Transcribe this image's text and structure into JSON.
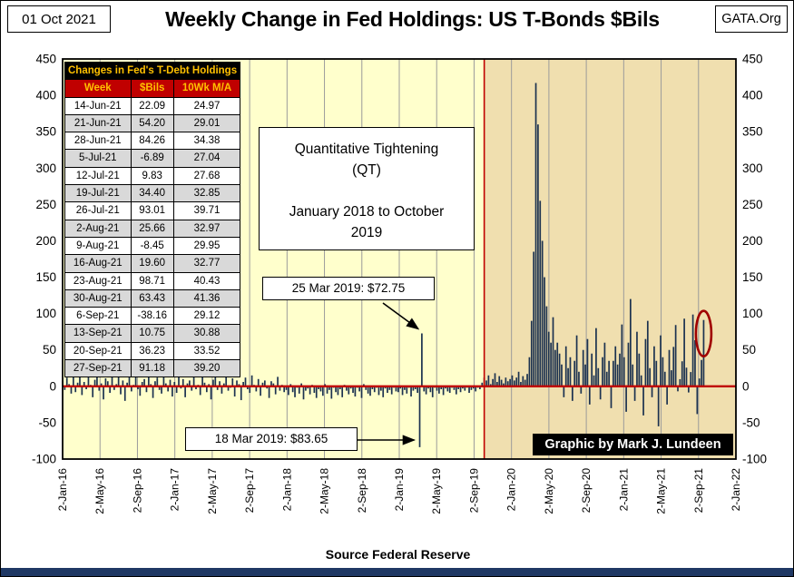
{
  "header": {
    "date": "01 Oct 2021",
    "site": "GATA.Org",
    "title": "Weekly Change in Fed Holdings: US T-Bonds $Bils"
  },
  "table": {
    "title": "Changes in Fed's T-Debt Holdings",
    "columns": [
      "Week",
      "$Bils",
      "10Wk M/A"
    ],
    "rows": [
      [
        "14-Jun-21",
        "22.09",
        "24.97"
      ],
      [
        "21-Jun-21",
        "54.20",
        "29.01"
      ],
      [
        "28-Jun-21",
        "84.26",
        "34.38"
      ],
      [
        "5-Jul-21",
        "-6.89",
        "27.04"
      ],
      [
        "12-Jul-21",
        "9.83",
        "27.68"
      ],
      [
        "19-Jul-21",
        "34.40",
        "32.85"
      ],
      [
        "26-Jul-21",
        "93.01",
        "39.71"
      ],
      [
        "2-Aug-21",
        "25.66",
        "32.97"
      ],
      [
        "9-Aug-21",
        "-8.45",
        "29.95"
      ],
      [
        "16-Aug-21",
        "19.60",
        "32.77"
      ],
      [
        "23-Aug-21",
        "98.71",
        "40.43"
      ],
      [
        "30-Aug-21",
        "63.43",
        "41.36"
      ],
      [
        "6-Sep-21",
        "-38.16",
        "29.12"
      ],
      [
        "13-Sep-21",
        "10.75",
        "30.88"
      ],
      [
        "20-Sep-21",
        "36.23",
        "33.52"
      ],
      [
        "27-Sep-21",
        "91.18",
        "39.20"
      ]
    ]
  },
  "annotations": {
    "qt_line1": "Quantitative Tightening",
    "qt_line2": "(QT)",
    "qt_line3": "January 2018 to October 2019",
    "callout_high": "25 Mar 2019: $72.75",
    "callout_low": "18 Mar 2019: $83.65",
    "credit": "Graphic by Mark J. Lundeen"
  },
  "footer": {
    "source": "Source Federal Reserve"
  },
  "chart_data": {
    "type": "bar",
    "title": "Weekly Change in Fed Holdings: US T-Bonds $Bils",
    "series_name": "Weekly change in Fed T-bond holdings ($Bils)",
    "xlabel": "Source Federal Reserve",
    "ylabel": "",
    "ylim": [
      -100,
      450
    ],
    "y_ticks": [
      450,
      400,
      350,
      300,
      250,
      200,
      150,
      100,
      50,
      0,
      -50,
      -100
    ],
    "x_tick_labels": [
      "2-Jan-16",
      "2-May-16",
      "2-Sep-16",
      "2-Jan-17",
      "2-May-17",
      "2-Sep-17",
      "2-Jan-18",
      "2-May-18",
      "2-Sep-18",
      "2-Jan-19",
      "2-May-19",
      "2-Sep-19",
      "2-Jan-20",
      "2-May-20",
      "2-Sep-20",
      "2-Jan-21",
      "2-May-21",
      "2-Sep-21",
      "2-Jan-22"
    ],
    "start_week": "2-Jan-16",
    "end_week": "2-Jan-22",
    "weeks_total": 313,
    "qt_divider_week": 196,
    "grid": "vertical-only",
    "legend": "none",
    "values": [
      8,
      -5,
      12,
      3,
      -10,
      15,
      -8,
      5,
      20,
      -12,
      6,
      -4,
      18,
      2,
      -15,
      9,
      22,
      -6,
      4,
      -18,
      11,
      7,
      -9,
      25,
      -5,
      3,
      14,
      -11,
      8,
      -20,
      5,
      16,
      -7,
      2,
      19,
      -4,
      -13,
      6,
      10,
      -8,
      23,
      3,
      -16,
      7,
      12,
      -5,
      -10,
      18,
      4,
      -7,
      9,
      -14,
      6,
      -9,
      14,
      -3,
      10,
      -15,
      4,
      8,
      -6,
      21,
      -4,
      2,
      -12,
      16,
      5,
      -8,
      3,
      -18,
      9,
      13,
      -5,
      7,
      -10,
      4,
      17,
      -6,
      -2,
      11,
      -14,
      8,
      3,
      -19,
      6,
      12,
      -4,
      -9,
      15,
      2,
      -7,
      10,
      -13,
      5,
      8,
      -3,
      -16,
      7,
      4,
      -11,
      13,
      -6,
      2,
      -8,
      -5,
      -12,
      3,
      -8,
      -15,
      -2,
      -10,
      4,
      -18,
      -6,
      -3,
      -11,
      2,
      -9,
      -16,
      -4,
      -7,
      -13,
      3,
      -10,
      -5,
      -17,
      -2,
      -8,
      -12,
      -4,
      -15,
      2,
      -6,
      -11,
      -3,
      -9,
      -14,
      -2,
      -7,
      -16,
      3,
      -5,
      -10,
      -13,
      -4,
      -8,
      -2,
      -12,
      -6,
      -15,
      -3,
      -9,
      -5,
      -11,
      -2,
      -7,
      -8,
      -3,
      -12,
      -5,
      -10,
      -2,
      -14,
      -6,
      -4,
      -9,
      -83.65,
      72.75,
      -7,
      -11,
      -3,
      -8,
      -15,
      -2,
      -6,
      -10,
      -4,
      -12,
      -3,
      -7,
      -9,
      -2,
      -5,
      -11,
      -4,
      -8,
      -3,
      -6,
      -2,
      -9,
      -5,
      -3,
      -7,
      -2,
      -4,
      5,
      12,
      8,
      15,
      3,
      10,
      18,
      6,
      14,
      9,
      4,
      12,
      7,
      10,
      15,
      8,
      12,
      20,
      6,
      14,
      9,
      17,
      40,
      90,
      185,
      417,
      360,
      255,
      200,
      150,
      110,
      75,
      60,
      95,
      50,
      60,
      45,
      30,
      -15,
      55,
      25,
      40,
      -20,
      35,
      70,
      20,
      -10,
      50,
      30,
      65,
      -25,
      45,
      15,
      80,
      25,
      -18,
      40,
      60,
      20,
      35,
      -30,
      35,
      55,
      30,
      45,
      85,
      40,
      -35,
      60,
      120,
      30,
      -20,
      75,
      45,
      15,
      -40,
      65,
      90,
      25,
      -15,
      55,
      35,
      -55,
      70,
      40,
      20,
      -25,
      50,
      22.09,
      54.2,
      84.26,
      -6.89,
      9.83,
      34.4,
      93.01,
      25.66,
      -8.45,
      19.6,
      98.71,
      63.43,
      -38.16,
      10.75,
      36.23,
      91.18
    ],
    "highlights": {
      "high": {
        "index": 167,
        "value": 72.75,
        "label": "25 Mar 2019: $72.75"
      },
      "low": {
        "index": 166,
        "value": -83.65,
        "label": "18 Mar 2019: $83.65"
      },
      "circled_last_value": 91.18
    },
    "colors": {
      "bar": "#1C3250",
      "zero_line": "#C00000",
      "divider": "#C00000",
      "bg_left": "#FFFFCC",
      "bg_right": "#F0DFAF",
      "grid": "#9B9B9B",
      "oval": "#A00000"
    }
  }
}
